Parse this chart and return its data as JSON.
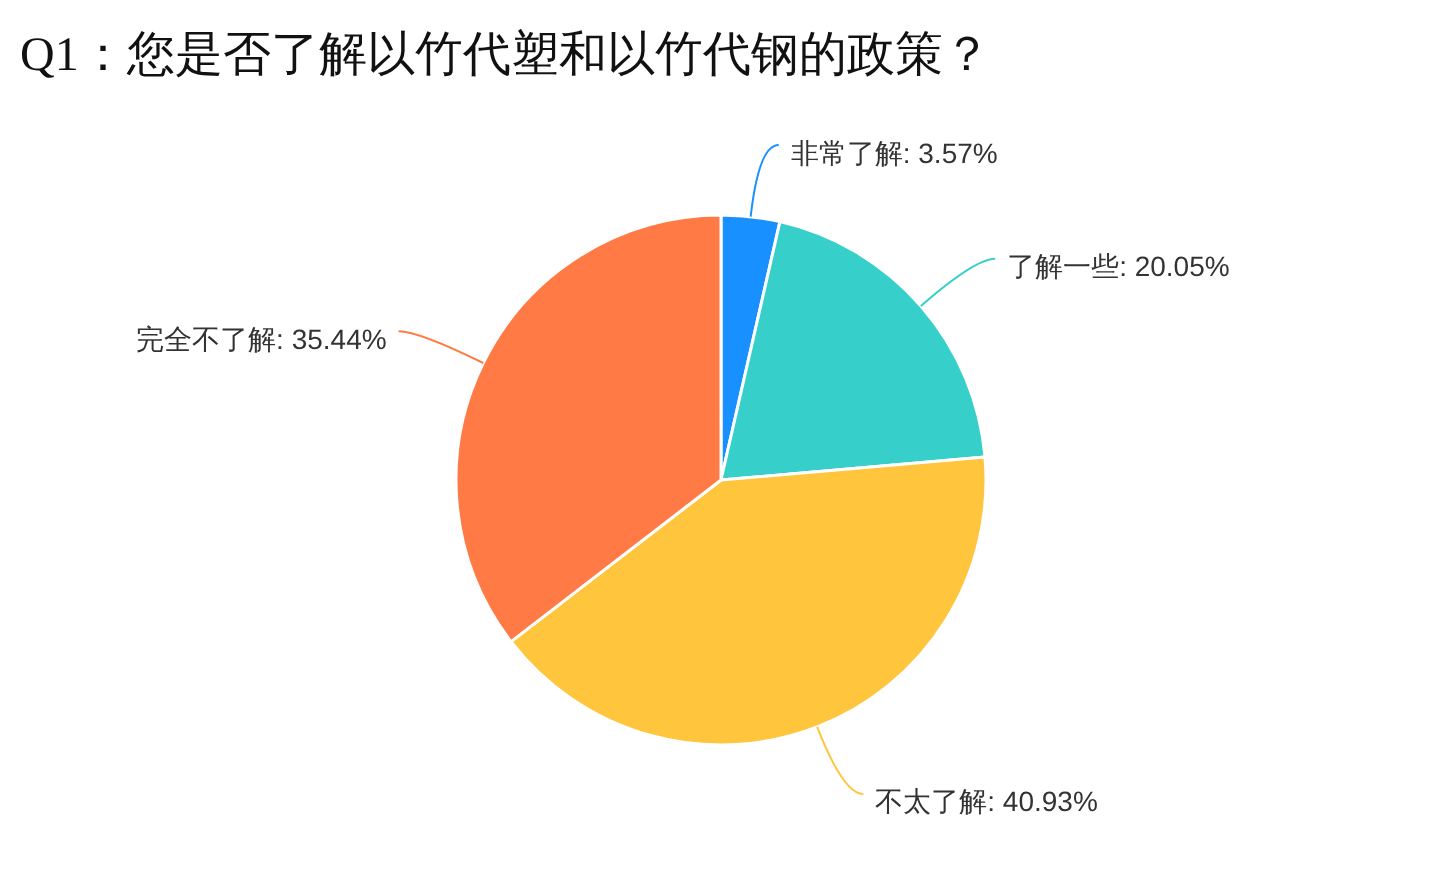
{
  "chart_data": {
    "type": "pie",
    "title": "Q1：您是否了解以竹代塑和以竹代钢的政策？",
    "categories": [
      "非常了解",
      "了解一些",
      "不太了解",
      "完全不了解"
    ],
    "values": [
      3.57,
      20.05,
      40.93,
      35.44
    ],
    "colors": [
      "#1890ff",
      "#36cfc9",
      "#ffc53d",
      "#ff7a45"
    ],
    "value_labels": [
      "3.57%",
      "20.05%",
      "40.93%",
      "35.44%"
    ]
  }
}
